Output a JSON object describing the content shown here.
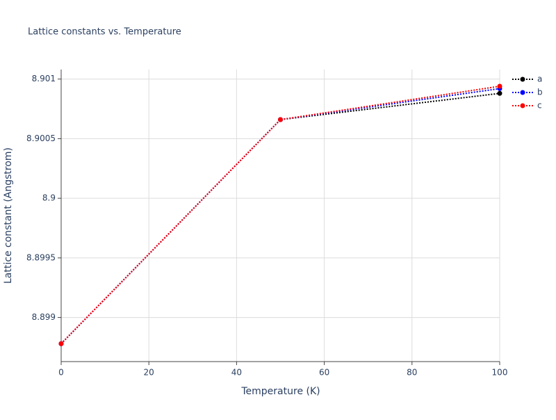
{
  "chart_data": {
    "type": "line",
    "title": "Lattice constants vs. Temperature",
    "x_label": "Temperature (K)",
    "y_label": "Lattice constant (Angstrom)",
    "x": [
      0,
      50,
      100
    ],
    "series": [
      {
        "name": "a",
        "color": "#000000",
        "values": [
          8.89878,
          8.90066,
          8.90088
        ]
      },
      {
        "name": "b",
        "color": "#0000ff",
        "values": [
          8.89878,
          8.90066,
          8.90092
        ]
      },
      {
        "name": "c",
        "color": "#ff0000",
        "values": [
          8.89878,
          8.90066,
          8.90094
        ]
      }
    ],
    "xlim": [
      0,
      100
    ],
    "xticks": [
      0,
      20,
      40,
      60,
      80,
      100
    ],
    "ylim": [
      8.89863,
      8.90108
    ],
    "yticks": [
      8.899,
      8.8995,
      8.9,
      8.9005,
      8.901
    ],
    "grid": true,
    "line_style": "dotted",
    "legend": "right"
  }
}
